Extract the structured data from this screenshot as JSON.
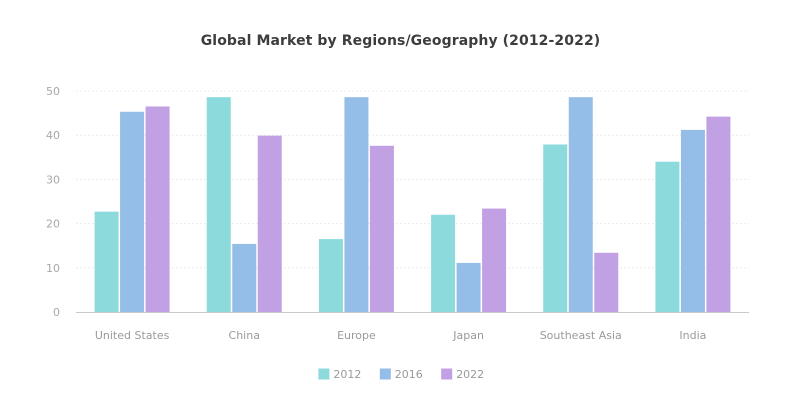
{
  "chart_data": {
    "type": "bar",
    "title": "Global Market by Regions/Geography (2012-2022)",
    "xlabel": "",
    "ylabel": "",
    "categories": [
      "United States",
      "China",
      "Europe",
      "Japan",
      "Southeast Asia",
      "India"
    ],
    "series": [
      {
        "name": "2012",
        "color": "#8cdadb",
        "values": [
          22.7,
          48.6,
          16.5,
          22.0,
          37.9,
          34.0
        ]
      },
      {
        "name": "2016",
        "color": "#94bde8",
        "values": [
          45.3,
          15.4,
          48.6,
          11.1,
          48.6,
          41.2
        ]
      },
      {
        "name": "2022",
        "color": "#c1a0e3",
        "values": [
          46.5,
          39.9,
          37.6,
          23.4,
          13.4,
          44.2
        ]
      }
    ],
    "ylim": [
      0,
      50
    ],
    "yticks": [
      0,
      10,
      20,
      30,
      40,
      50
    ],
    "grid": true,
    "legend_position": "bottom-center"
  }
}
